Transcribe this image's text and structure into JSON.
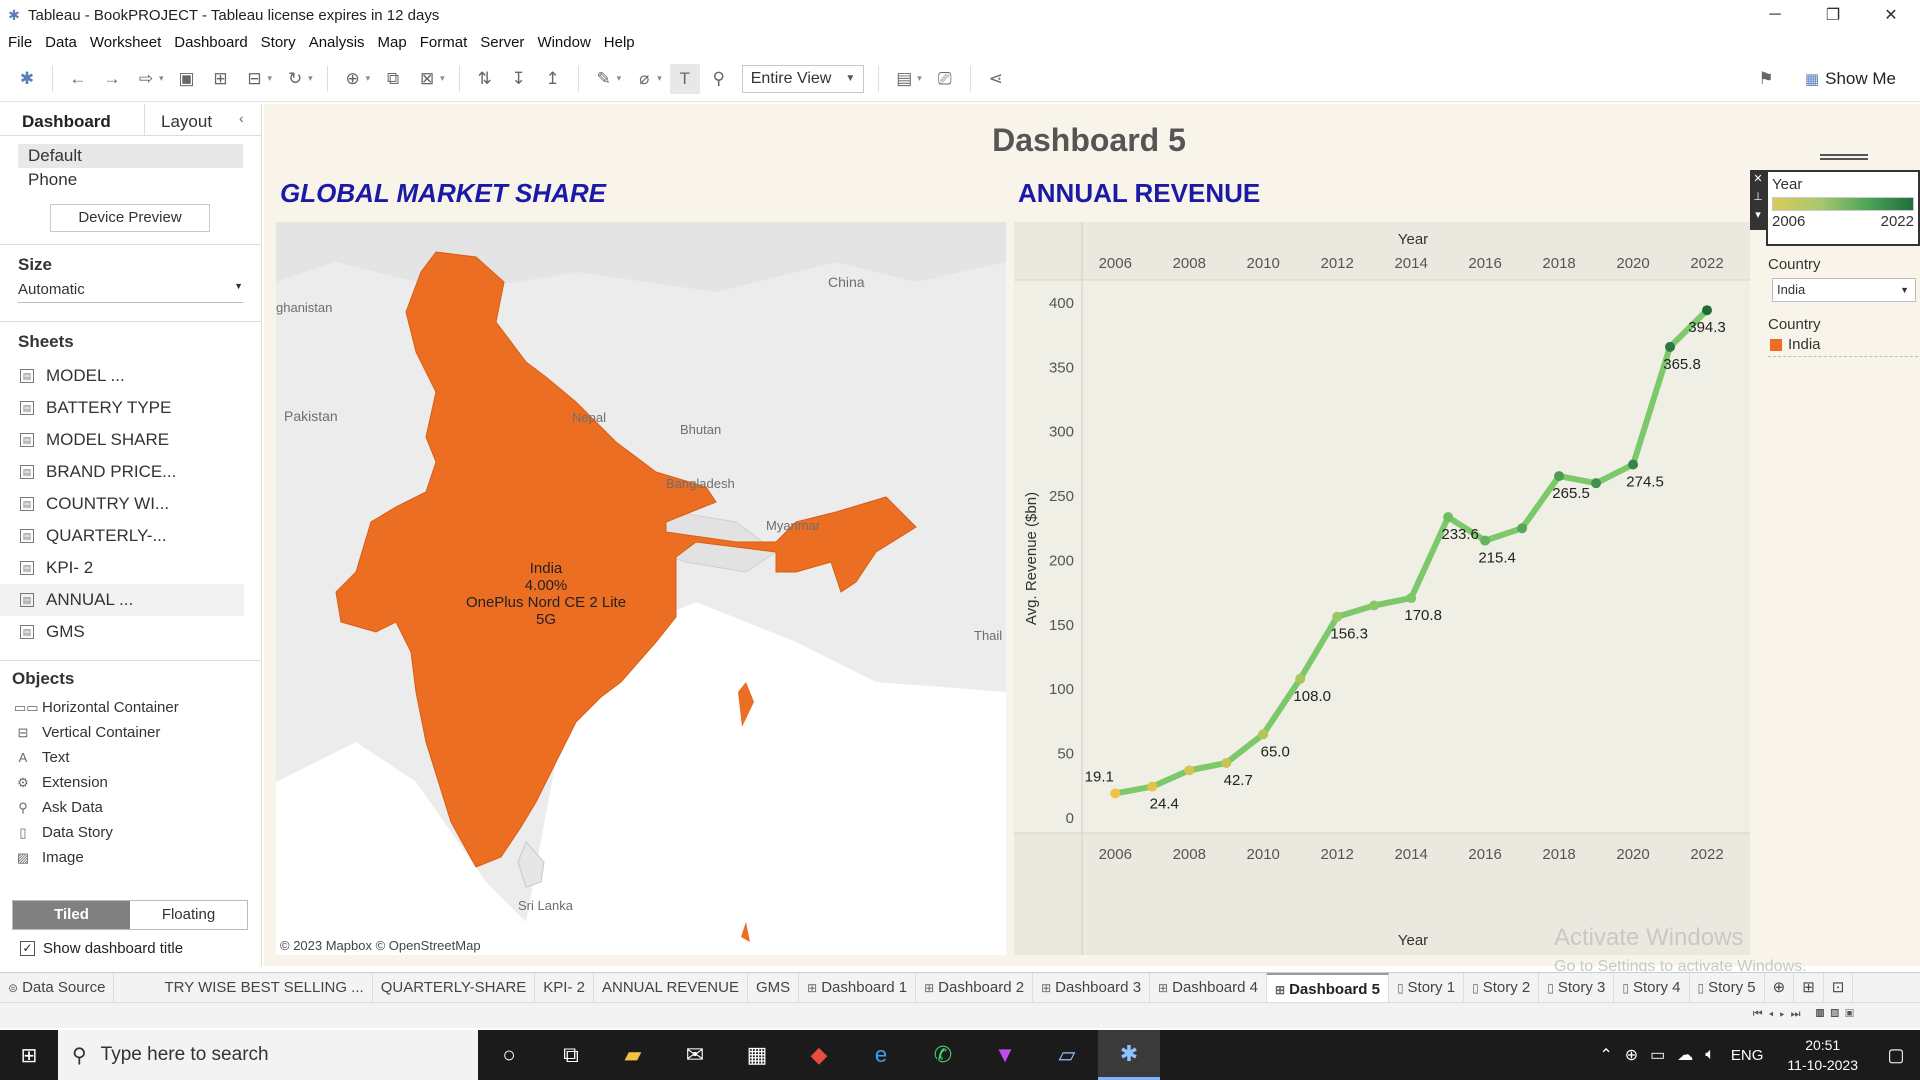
{
  "window": {
    "title": "Tableau - BookPROJECT - Tableau license expires in 12 days",
    "controls": [
      "─",
      "❐",
      "✕"
    ]
  },
  "menu": [
    "File",
    "Data",
    "Worksheet",
    "Dashboard",
    "Story",
    "Analysis",
    "Map",
    "Format",
    "Server",
    "Window",
    "Help"
  ],
  "toolbar": {
    "view_select": "Entire View",
    "show_me": "Show Me"
  },
  "left_pane": {
    "tab_dashboard": "Dashboard",
    "tab_layout": "Layout",
    "devices": [
      "Default",
      "Phone"
    ],
    "device_preview": "Device Preview",
    "size_label": "Size",
    "size_value": "Automatic",
    "sheets_label": "Sheets",
    "sheets": [
      "MODEL ...",
      "BATTERY TYPE",
      "MODEL SHARE",
      "BRAND PRICE...",
      "COUNTRY WI...",
      "QUARTERLY-...",
      "KPI- 2",
      "ANNUAL ...",
      "GMS"
    ],
    "objects_label": "Objects",
    "objects": [
      "Horizontal Container",
      "Vertical Container",
      "Text",
      "Extension",
      "Ask Data",
      "Data Story",
      "Image"
    ],
    "tiled": "Tiled",
    "floating": "Floating",
    "show_title": "Show dashboard title"
  },
  "dashboard": {
    "title": "Dashboard 5",
    "gms_title": "GLOBAL MARKET SHARE",
    "ar_title": "ANNUAL REVENUE",
    "map": {
      "labels": [
        "China",
        "Pakistan",
        "Nepal",
        "Bhutan",
        "Bangladesh",
        "Myanmar",
        "Thail",
        "Sri Lanka",
        "ghanistan"
      ],
      "tooltip_country": "India",
      "tooltip_share": "4.00%",
      "tooltip_model": "OnePlus Nord CE 2 Lite 5G",
      "copyright": "© 2023 Mapbox © OpenStreetMap"
    },
    "legend": {
      "year_title": "Year",
      "year_min": "2006",
      "year_max": "2022",
      "country_filter_title": "Country",
      "country_filter_value": "India",
      "country_legend_title": "Country",
      "country_legend_item": "India",
      "india_color": "#ec6e22"
    }
  },
  "chart_data": {
    "type": "line",
    "x_axis_title": "Year",
    "ylabel": "Avg. Revenue ($bn)",
    "x_ticks": [
      "2006",
      "2008",
      "2010",
      "2012",
      "2014",
      "2016",
      "2018",
      "2020",
      "2022"
    ],
    "y_ticks": [
      "0",
      "50",
      "100",
      "150",
      "200",
      "250",
      "300",
      "350",
      "400"
    ],
    "xlim": [
      2005.1,
      2023
    ],
    "ylim": [
      -7,
      410
    ],
    "x": [
      2006,
      2007,
      2008,
      2009,
      2010,
      2011,
      2012,
      2013,
      2014,
      2015,
      2016,
      2017,
      2018,
      2019,
      2020,
      2021,
      2022
    ],
    "values": [
      19.1,
      24.4,
      37,
      42.7,
      65.0,
      108.0,
      156.3,
      165,
      170.8,
      233.6,
      215.4,
      225,
      265.5,
      260,
      274.5,
      365.8,
      394.3
    ],
    "labels": [
      "19.1",
      "24.4",
      "",
      "42.7",
      "65.0",
      "108.0",
      "156.3",
      "",
      "170.8",
      "233.6",
      "215.4",
      "",
      "265.5",
      "",
      "274.5",
      "365.8",
      "394.3"
    ],
    "line_color": "#7cc86a",
    "point_color_start": "#f2c244",
    "point_color_end": "#1f6e3a"
  },
  "sheet_tabs": {
    "data_source": "Data Source",
    "tabs": [
      "TRY WISE BEST SELLING ...",
      "QUARTERLY-SHARE",
      "KPI- 2",
      "ANNUAL REVENUE",
      "GMS"
    ],
    "dashboards": [
      "Dashboard 1",
      "Dashboard 2",
      "Dashboard 3",
      "Dashboard 4",
      "Dashboard 5"
    ],
    "stories": [
      "Story 1",
      "Story 2",
      "Story 3",
      "Story 4",
      "Story 5"
    ]
  },
  "watermark": {
    "line1": "Activate Windows",
    "line2": "Go to Settings to activate Windows."
  },
  "taskbar": {
    "search_placeholder": "Type here to search",
    "lang": "ENG",
    "time": "20:51",
    "date": "11-10-2023"
  }
}
